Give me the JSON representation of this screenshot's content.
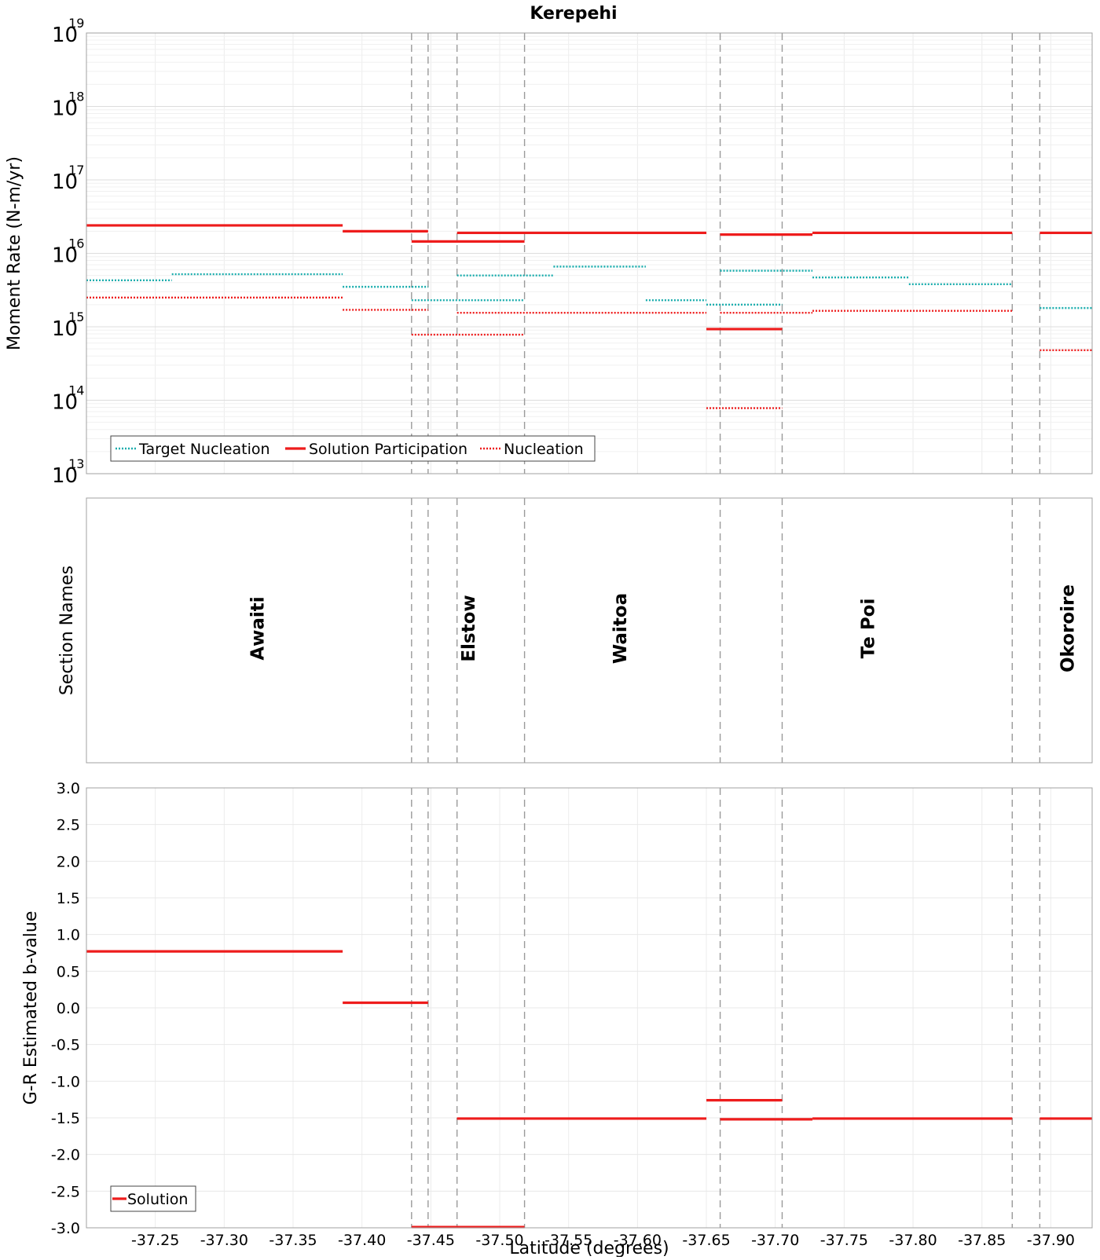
{
  "title": "Kerepehi",
  "chart_data": [
    {
      "type": "line",
      "panel": "moment-rate",
      "title": "Kerepehi",
      "ylabel": "Moment Rate (N-m/yr)",
      "yscale": "log",
      "xlim": [
        -37.2,
        -37.93
      ],
      "ylim": [
        10000000000000.0,
        1e+19
      ],
      "ytick_base": "10",
      "ytick_exponents": [
        "13",
        "14",
        "15",
        "16",
        "17",
        "18",
        "19"
      ],
      "legend": {
        "placement": "bottom-left",
        "entries": [
          "Target Nucleation",
          "Solution Participation",
          "Nucleation"
        ]
      },
      "series": [
        {
          "name": "Target Nucleation",
          "style": "dotted",
          "color": "#1aadad",
          "segments": [
            {
              "x": [
                -37.2,
                -37.262
              ],
              "y": 4300000000000000.0
            },
            {
              "x": [
                -37.262,
                -37.386
              ],
              "y": 5200000000000000.0
            },
            {
              "x": [
                -37.386,
                -37.448
              ],
              "y": 3500000000000000.0
            },
            {
              "x": [
                -37.436,
                -37.518
              ],
              "y": 2300000000000000.0
            },
            {
              "x": [
                -37.469,
                -37.539
              ],
              "y": 5000000000000000.0
            },
            {
              "x": [
                -37.539,
                -37.606
              ],
              "y": 6600000000000000.0
            },
            {
              "x": [
                -37.606,
                -37.65
              ],
              "y": 2300000000000000.0
            },
            {
              "x": [
                -37.65,
                -37.705
              ],
              "y": 2000000000000000.0
            },
            {
              "x": [
                -37.66,
                -37.727
              ],
              "y": 5800000000000000.0
            },
            {
              "x": [
                -37.727,
                -37.797
              ],
              "y": 4700000000000000.0
            },
            {
              "x": [
                -37.797,
                -37.872
              ],
              "y": 3800000000000000.0
            },
            {
              "x": [
                -37.892,
                -37.93
              ],
              "y": 1800000000000000.0
            }
          ]
        },
        {
          "name": "Solution Participation",
          "style": "solid",
          "color": "#ee1c1c",
          "segments": [
            {
              "x": [
                -37.2,
                -37.386
              ],
              "y": 2.4e+16
            },
            {
              "x": [
                -37.386,
                -37.448
              ],
              "y": 2e+16
            },
            {
              "x": [
                -37.436,
                -37.518
              ],
              "y": 1.45e+16
            },
            {
              "x": [
                -37.469,
                -37.65
              ],
              "y": 1.9e+16
            },
            {
              "x": [
                -37.65,
                -37.705
              ],
              "y": 930000000000000.0
            },
            {
              "x": [
                -37.66,
                -37.727
              ],
              "y": 1.8e+16
            },
            {
              "x": [
                -37.727,
                -37.872
              ],
              "y": 1.9e+16
            },
            {
              "x": [
                -37.892,
                -37.93
              ],
              "y": 1.9e+16
            }
          ]
        },
        {
          "name": "Nucleation",
          "style": "dotted",
          "color": "#ee1c1c",
          "segments": [
            {
              "x": [
                -37.2,
                -37.386
              ],
              "y": 2500000000000000.0
            },
            {
              "x": [
                -37.386,
                -37.448
              ],
              "y": 1700000000000000.0
            },
            {
              "x": [
                -37.436,
                -37.518
              ],
              "y": 780000000000000.0
            },
            {
              "x": [
                -37.469,
                -37.65
              ],
              "y": 1550000000000000.0
            },
            {
              "x": [
                -37.65,
                -37.705
              ],
              "y": 78000000000000.0
            },
            {
              "x": [
                -37.66,
                -37.727
              ],
              "y": 1550000000000000.0
            },
            {
              "x": [
                -37.727,
                -37.872
              ],
              "y": 1650000000000000.0
            },
            {
              "x": [
                -37.892,
                -37.93
              ],
              "y": 480000000000000.0
            }
          ]
        }
      ]
    },
    {
      "type": "table",
      "panel": "section-names",
      "ylabel": "Section Names",
      "xlim": [
        -37.2,
        -37.93
      ],
      "sections": [
        {
          "name": "Awaiti",
          "x": -37.325
        },
        {
          "name": "Elstow",
          "x": -37.478
        },
        {
          "name": "Waitoa",
          "x": -37.588
        },
        {
          "name": "Te Poi",
          "x": -37.768
        },
        {
          "name": "Okoroire",
          "x": -37.913
        }
      ]
    },
    {
      "type": "line",
      "panel": "b-value",
      "ylabel": "G-R Estimated b-value",
      "xlabel": "Latitude (degrees)",
      "xlim": [
        -37.2,
        -37.93
      ],
      "ylim": [
        -3.0,
        3.0
      ],
      "yticks": [
        "3.0",
        "2.5",
        "2.0",
        "1.5",
        "1.0",
        "0.5",
        "0.0",
        "-0.5",
        "-1.0",
        "-1.5",
        "-2.0",
        "-2.5",
        "-3.0"
      ],
      "ytick_values": [
        3.0,
        2.5,
        2.0,
        1.5,
        1.0,
        0.5,
        0.0,
        -0.5,
        -1.0,
        -1.5,
        -2.0,
        -2.5,
        -3.0
      ],
      "xticks": [
        "-37.25",
        "-37.30",
        "-37.35",
        "-37.40",
        "-37.45",
        "-37.50",
        "-37.55",
        "-37.60",
        "-37.65",
        "-37.70",
        "-37.75",
        "-37.80",
        "-37.85",
        "-37.90"
      ],
      "xtick_values": [
        -37.25,
        -37.3,
        -37.35,
        -37.4,
        -37.45,
        -37.5,
        -37.55,
        -37.6,
        -37.65,
        -37.7,
        -37.75,
        -37.8,
        -37.85,
        -37.9
      ],
      "legend": {
        "placement": "bottom-left",
        "entries": [
          "Solution"
        ]
      },
      "series": [
        {
          "name": "Solution",
          "style": "solid",
          "color": "#ee1c1c",
          "segments": [
            {
              "x": [
                -37.2,
                -37.386
              ],
              "y": 0.77
            },
            {
              "x": [
                -37.386,
                -37.448
              ],
              "y": 0.07
            },
            {
              "x": [
                -37.436,
                -37.518
              ],
              "y": -2.99
            },
            {
              "x": [
                -37.469,
                -37.65
              ],
              "y": -1.51
            },
            {
              "x": [
                -37.65,
                -37.705
              ],
              "y": -1.26
            },
            {
              "x": [
                -37.66,
                -37.727
              ],
              "y": -1.52
            },
            {
              "x": [
                -37.727,
                -37.872
              ],
              "y": -1.51
            },
            {
              "x": [
                -37.892,
                -37.93
              ],
              "y": -1.51
            }
          ]
        }
      ]
    }
  ],
  "section_boundaries": [
    -37.436,
    -37.448,
    -37.469,
    -37.518,
    -37.66,
    -37.705,
    -37.872,
    -37.892
  ]
}
